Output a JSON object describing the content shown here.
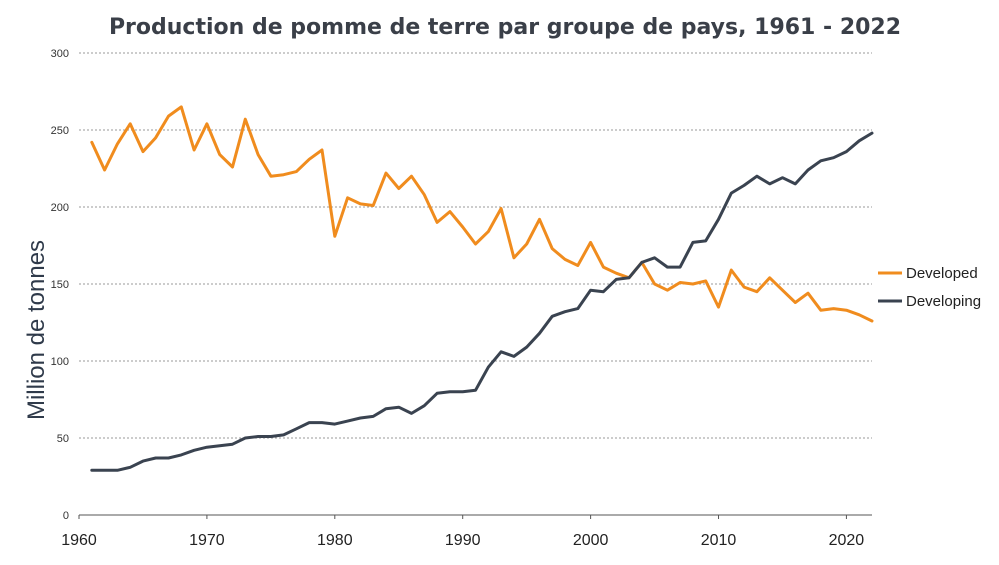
{
  "chart_data": {
    "type": "line",
    "title": "Production de pomme de terre par groupe de pays, 1961 - 2022",
    "xlabel": "",
    "ylabel": "Million de  tonnes",
    "xlim": [
      1960,
      2022
    ],
    "ylim": [
      0,
      300
    ],
    "grid": true,
    "legend_position": "right",
    "x_ticks": [
      "1960",
      "1970",
      "1980",
      "1990",
      "2000",
      "2010",
      "2020"
    ],
    "y_ticks": [
      "0",
      "50",
      "100",
      "150",
      "200",
      "250",
      "300"
    ],
    "x": [
      1961,
      1962,
      1963,
      1964,
      1965,
      1966,
      1967,
      1968,
      1969,
      1970,
      1971,
      1972,
      1973,
      1974,
      1975,
      1976,
      1977,
      1978,
      1979,
      1980,
      1981,
      1982,
      1983,
      1984,
      1985,
      1986,
      1987,
      1988,
      1989,
      1990,
      1991,
      1992,
      1993,
      1994,
      1995,
      1996,
      1997,
      1998,
      1999,
      2000,
      2001,
      2002,
      2003,
      2004,
      2005,
      2006,
      2007,
      2008,
      2009,
      2010,
      2011,
      2012,
      2013,
      2014,
      2015,
      2016,
      2017,
      2018,
      2019,
      2020,
      2021,
      2022
    ],
    "series": [
      {
        "name": "Developed",
        "color": "#f08c1e",
        "values": [
          242,
          224,
          241,
          254,
          236,
          245,
          259,
          265,
          237,
          254,
          234,
          226,
          257,
          234,
          220,
          221,
          223,
          231,
          237,
          181,
          206,
          202,
          201,
          222,
          212,
          220,
          208,
          190,
          197,
          187,
          176,
          184,
          199,
          167,
          176,
          192,
          173,
          166,
          162,
          177,
          161,
          157,
          154,
          164,
          150,
          146,
          151,
          150,
          152,
          135,
          159,
          148,
          145,
          154,
          146,
          138,
          144,
          133,
          134,
          133,
          130,
          126
        ]
      },
      {
        "name": "Developing",
        "color": "#3a4350",
        "values": [
          29,
          29,
          29,
          31,
          35,
          37,
          37,
          39,
          42,
          44,
          45,
          46,
          50,
          51,
          51,
          52,
          56,
          60,
          60,
          59,
          61,
          63,
          64,
          69,
          70,
          66,
          71,
          79,
          80,
          80,
          81,
          96,
          106,
          103,
          109,
          118,
          129,
          132,
          134,
          146,
          145,
          153,
          154,
          164,
          167,
          161,
          161,
          177,
          178,
          192,
          209,
          214,
          220,
          215,
          219,
          215,
          224,
          230,
          232,
          236,
          243,
          248
        ]
      }
    ]
  }
}
